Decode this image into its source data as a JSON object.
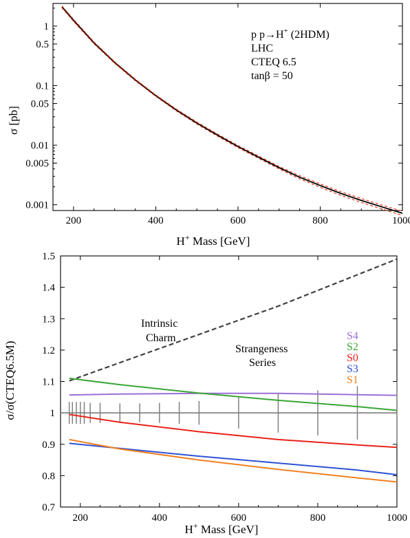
{
  "chart_data": [
    {
      "type": "line",
      "xlabel_main": "H",
      "xlabel_sup": "+",
      "xlabel_rest": " Mass [GeV]",
      "ylabel": "σ [pb]",
      "xlim": [
        150,
        1000
      ],
      "ylim": [
        0.0008,
        2.4
      ],
      "yscale": "log",
      "x_ticks": [
        200,
        400,
        600,
        800,
        1000
      ],
      "x_tick_labels": [
        "200",
        "400",
        "600",
        "800",
        "1000"
      ],
      "y_ticks": [
        1,
        0.5,
        0.1,
        0.05,
        0.01,
        0.005,
        0.001
      ],
      "y_tick_labels": [
        "1",
        "0.5",
        "0.1",
        "0.05",
        "0.01",
        "0.005",
        "0.001"
      ],
      "annotations": [
        {
          "text_main": "p p",
          "text_arrow": "→",
          "text_h": "H",
          "text_sup": "+",
          "text_rest": " (2HDM)"
        },
        {
          "text": "LHC"
        },
        {
          "text": "CTEQ 6.5"
        },
        {
          "text": "tanβ = 50"
        }
      ],
      "series": [
        {
          "style": "central",
          "color": "#000000",
          "x": [
            172,
            200,
            250,
            300,
            350,
            400,
            450,
            500,
            550,
            600,
            650,
            700,
            750,
            800,
            850,
            900,
            950,
            1000
          ],
          "values": [
            2.1,
            1.25,
            0.52,
            0.245,
            0.125,
            0.068,
            0.039,
            0.0235,
            0.0148,
            0.0095,
            0.0063,
            0.0042,
            0.0029,
            0.0021,
            0.00155,
            0.00118,
            0.00092,
            0.00072
          ]
        },
        {
          "style": "upper",
          "color": "#e03a1e",
          "x": [
            172,
            200,
            250,
            300,
            350,
            400,
            450,
            500,
            550,
            600,
            650,
            700,
            750,
            800,
            850,
            900,
            950,
            1000
          ],
          "values": [
            2.18,
            1.3,
            0.54,
            0.253,
            0.129,
            0.07,
            0.0403,
            0.0244,
            0.0154,
            0.0099,
            0.0066,
            0.0044,
            0.00308,
            0.00224,
            0.00166,
            0.00127,
            0.00099,
            0.00078
          ]
        },
        {
          "style": "lower",
          "color": "#e03a1e",
          "x": [
            172,
            200,
            250,
            300,
            350,
            400,
            450,
            500,
            550,
            600,
            650,
            700,
            750,
            800,
            850,
            900,
            950,
            1000
          ],
          "values": [
            2.02,
            1.2,
            0.5,
            0.237,
            0.121,
            0.066,
            0.0377,
            0.0226,
            0.0142,
            0.0091,
            0.006,
            0.004,
            0.00273,
            0.00196,
            0.00144,
            0.00109,
            0.00085,
            0.00066
          ]
        }
      ]
    },
    {
      "type": "line",
      "xlabel_main": "H",
      "xlabel_sup": "+",
      "xlabel_rest": " Mass [GeV]",
      "ylabel": "σ/σ(CTEQ6.5M)",
      "xlim": [
        150,
        1000
      ],
      "ylim": [
        0.7,
        1.5
      ],
      "x_ticks": [
        200,
        400,
        600,
        800,
        1000
      ],
      "x_tick_labels": [
        "200",
        "400",
        "600",
        "800",
        "1000"
      ],
      "y_ticks": [
        0.7,
        0.8,
        0.9,
        1,
        1.1,
        1.2,
        1.3,
        1.4,
        1.5
      ],
      "y_tick_labels": [
        "0.7",
        "0.8",
        "0.9",
        "1",
        "1.1",
        "1.2",
        "1.3",
        "1.4",
        "1.5"
      ],
      "annotations": [
        {
          "text": "Intrinsic"
        },
        {
          "text": "Charm"
        },
        {
          "text": "Strangeness"
        },
        {
          "text": "Series"
        }
      ],
      "series": [
        {
          "name": "Intrinsic Charm",
          "color": "#404040",
          "dashed": true,
          "x": [
            172,
            200,
            300,
            400,
            500,
            600,
            700,
            800,
            900,
            1000
          ],
          "values": [
            1.102,
            1.115,
            1.16,
            1.205,
            1.25,
            1.295,
            1.34,
            1.39,
            1.44,
            1.49
          ]
        },
        {
          "name": "S4",
          "color": "#9b6fd6",
          "x": [
            172,
            300,
            500,
            700,
            900,
            1000
          ],
          "values": [
            1.057,
            1.06,
            1.062,
            1.062,
            1.058,
            1.056
          ]
        },
        {
          "name": "S2",
          "color": "#3aa535",
          "x": [
            172,
            300,
            500,
            700,
            900,
            1000
          ],
          "values": [
            1.11,
            1.09,
            1.063,
            1.04,
            1.02,
            1.008
          ]
        },
        {
          "name": "S0",
          "color": "#e8221a",
          "x": [
            172,
            300,
            500,
            700,
            900,
            1000
          ],
          "values": [
            0.995,
            0.97,
            0.94,
            0.915,
            0.898,
            0.89
          ]
        },
        {
          "name": "S3",
          "color": "#2f52d4",
          "x": [
            172,
            300,
            500,
            700,
            900,
            1000
          ],
          "values": [
            0.903,
            0.887,
            0.862,
            0.84,
            0.818,
            0.803
          ]
        },
        {
          "name": "S1",
          "color": "#f08020",
          "x": [
            172,
            300,
            500,
            700,
            900,
            1000
          ],
          "values": [
            0.915,
            0.885,
            0.85,
            0.82,
            0.793,
            0.78
          ]
        }
      ],
      "reference_line": {
        "y": 1,
        "color": "#707070"
      },
      "error_bars": {
        "color": "#808080",
        "x": [
          172,
          180,
          190,
          200,
          210,
          225,
          250,
          300,
          350,
          400,
          450,
          500,
          600,
          700,
          800,
          900,
          1000
        ],
        "half_width": [
          0.035,
          0.035,
          0.035,
          0.035,
          0.035,
          0.032,
          0.032,
          0.03,
          0.03,
          0.032,
          0.035,
          0.038,
          0.05,
          0.063,
          0.072,
          0.085,
          0.1
        ]
      }
    }
  ]
}
